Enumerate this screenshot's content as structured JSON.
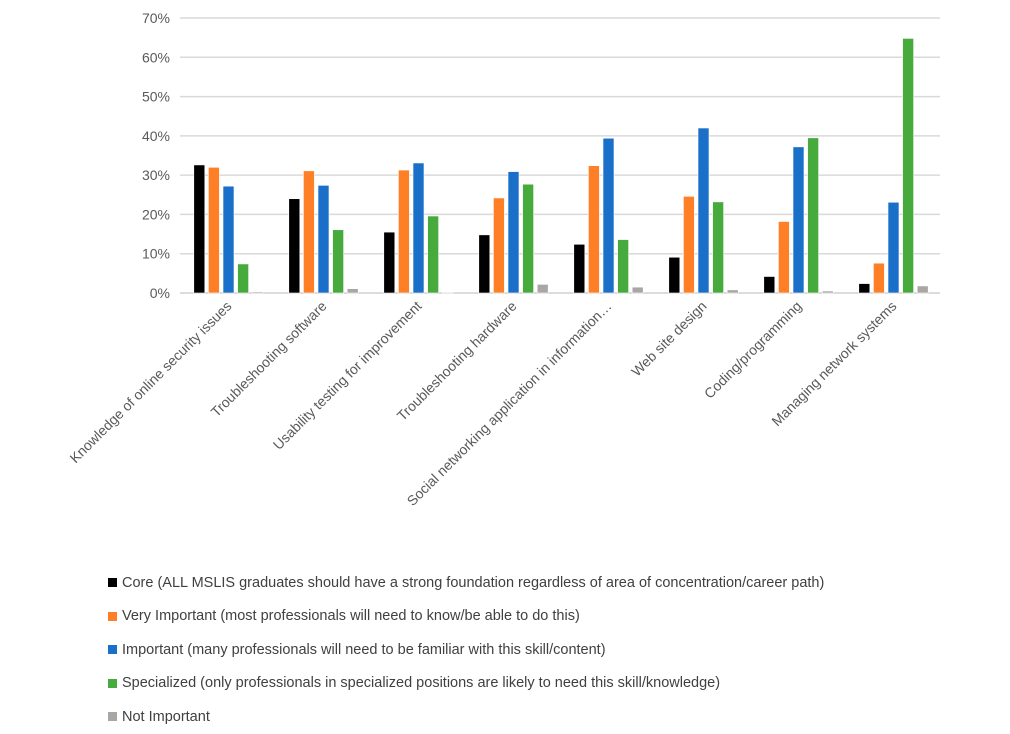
{
  "chart_data": {
    "type": "bar",
    "title": "",
    "xlabel": "",
    "ylabel": "",
    "ylim": [
      0,
      70
    ],
    "yticks": [
      "0%",
      "10%",
      "20%",
      "30%",
      "40%",
      "50%",
      "60%",
      "70%"
    ],
    "grid": true,
    "legend_position": "bottom",
    "categories": [
      "Knowledge of online security issues",
      "Troubleshooting software",
      "Usability testing for improvement",
      "Troubleshooting hardware",
      "Social networking application in information…",
      "Web site design",
      "Coding/programming",
      "Managing network systems"
    ],
    "series": [
      {
        "name": "Core (ALL MSLIS graduates should have a strong foundation regardless of area of concentration/career path)",
        "color": "#000000",
        "values": [
          32.6,
          24.0,
          15.5,
          14.8,
          12.4,
          9.1,
          4.2,
          2.4
        ]
      },
      {
        "name": "Very Important (most professionals will need to know/be able to do this)",
        "color": "#ff7f27",
        "values": [
          32.0,
          31.1,
          31.3,
          24.2,
          32.4,
          24.6,
          18.2,
          7.6
        ]
      },
      {
        "name": "Important (many professionals will need to be familiar with this skill/content)",
        "color": "#1a70c8",
        "values": [
          27.2,
          27.4,
          33.1,
          30.9,
          39.4,
          42.0,
          37.2,
          23.1
        ]
      },
      {
        "name": "Specialized (only professionals in specialized positions are likely to need this skill/knowledge)",
        "color": "#46ab3c",
        "values": [
          7.4,
          16.1,
          19.6,
          27.7,
          13.6,
          23.2,
          39.5,
          64.8
        ]
      },
      {
        "name": "Not Important",
        "color": "#aaa6a3",
        "values": [
          0.3,
          1.1,
          0.2,
          2.2,
          1.5,
          0.8,
          0.5,
          1.8
        ]
      }
    ]
  }
}
